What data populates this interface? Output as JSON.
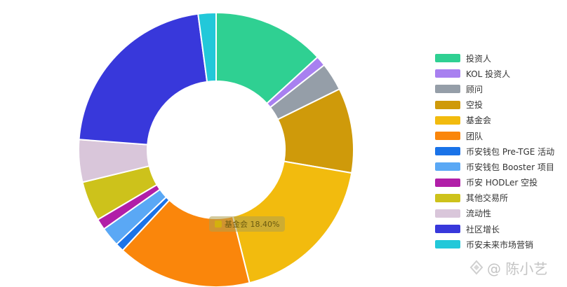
{
  "chart_data": {
    "type": "pie",
    "donut": true,
    "series": [
      {
        "name": "投资人",
        "value": 13.2,
        "color": "#2fd092"
      },
      {
        "name": "KOL 投资人",
        "value": 1.2,
        "color": "#a880f0"
      },
      {
        "name": "顾问",
        "value": 3.3,
        "color": "#959ea8"
      },
      {
        "name": "空投",
        "value": 10.0,
        "color": "#cf9a0a"
      },
      {
        "name": "基金会",
        "value": 18.4,
        "color": "#f2bb0e"
      },
      {
        "name": "团队",
        "value": 15.8,
        "color": "#fa860b"
      },
      {
        "name": "币安钱包 Pre-TGE 活动",
        "value": 1.0,
        "color": "#1a73e8"
      },
      {
        "name": "币安钱包 Booster 项目",
        "value": 2.3,
        "color": "#5aa8f5"
      },
      {
        "name": "币安 HODLer 空投",
        "value": 1.3,
        "color": "#b11fa8"
      },
      {
        "name": "其他交易所",
        "value": 4.7,
        "color": "#cdc21b"
      },
      {
        "name": "流动性",
        "value": 5.0,
        "color": "#d9c6da"
      },
      {
        "name": "社区增长",
        "value": 21.7,
        "color": "#3838db"
      },
      {
        "name": "币安未来市场营销",
        "value": 2.1,
        "color": "#22c8d9"
      }
    ],
    "legend_position": "right",
    "tooltip": {
      "swatch_color": "#d4b00e",
      "text": "基金会 18.40%"
    }
  },
  "watermark": {
    "text": "@ 陈小艺"
  }
}
